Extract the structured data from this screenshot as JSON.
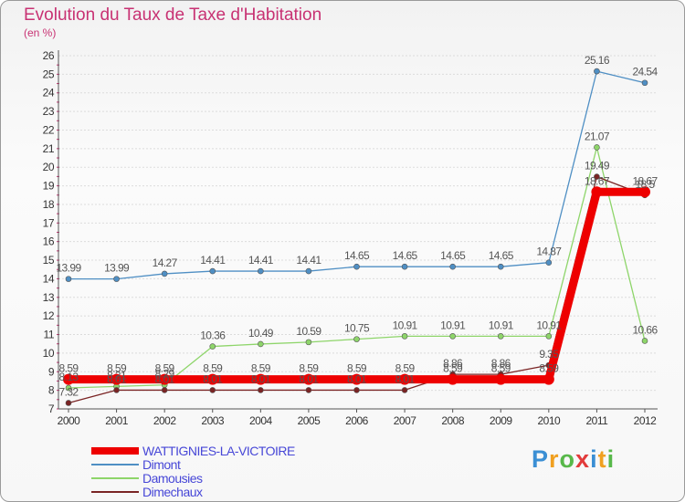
{
  "chart_data": {
    "type": "line",
    "title": "Evolution du Taux de Taxe d'Habitation",
    "subtitle": "(en %)",
    "categories": [
      "2000",
      "2001",
      "2002",
      "2003",
      "2004",
      "2005",
      "2006",
      "2007",
      "2008",
      "2009",
      "2010",
      "2011",
      "2012"
    ],
    "ylim": [
      7,
      26
    ],
    "yticks": [
      7,
      8,
      9,
      10,
      11,
      12,
      13,
      14,
      15,
      16,
      17,
      18,
      19,
      20,
      21,
      22,
      23,
      24,
      25,
      26
    ],
    "grid": "horizontal",
    "legend_position": "bottom-left",
    "series": [
      {
        "name": "WATTIGNIES-LA-VICTOIRE",
        "color": "#ee0000",
        "values": [
          8.59,
          8.59,
          8.59,
          8.59,
          8.59,
          8.59,
          8.59,
          8.59,
          8.59,
          8.59,
          8.59,
          18.67,
          18.67
        ],
        "labels": [
          "8.59",
          "8.59",
          "8.59",
          "8.59",
          "8.59",
          "8.59",
          "8.59",
          "8.59",
          "8.59",
          "8.59",
          "8.59",
          "18.67",
          "18.67"
        ]
      },
      {
        "name": "Dimont",
        "color": "#4f8fc4",
        "values": [
          13.99,
          13.99,
          14.27,
          14.41,
          14.41,
          14.41,
          14.65,
          14.65,
          14.65,
          14.65,
          14.87,
          25.16,
          24.54
        ],
        "labels": [
          "13.99",
          "13.99",
          "14.27",
          "14.41",
          "14.41",
          "14.41",
          "14.65",
          "14.65",
          "14.65",
          "14.65",
          "14.87",
          "25.16",
          "24.54"
        ]
      },
      {
        "name": "Damousies",
        "color": "#8ed56a",
        "values": [
          8.13,
          8.21,
          8.29,
          10.36,
          10.49,
          10.59,
          10.75,
          10.91,
          10.91,
          10.91,
          10.91,
          21.07,
          10.66
        ],
        "labels": [
          "8.13",
          "8.21",
          "8.29",
          "10.36",
          "10.49",
          "10.59",
          "10.75",
          "10.91",
          "10.91",
          "10.91",
          "10.91",
          "21.07",
          "10.66"
        ]
      },
      {
        "name": "Dimechaux",
        "color": "#7a2424",
        "values": [
          7.32,
          8.01,
          8.01,
          8.01,
          8.01,
          8.01,
          8.01,
          8.01,
          8.86,
          8.86,
          9.35,
          19.49,
          18.5
        ],
        "labels": [
          "7.32",
          "8.01",
          "8.01",
          "8.01",
          "8.01",
          "8.01",
          "8.01",
          "8.01",
          "8.86",
          "8.86",
          "9.35",
          "19.49",
          "18.5"
        ]
      }
    ]
  },
  "logo": {
    "letters": [
      "P",
      "r",
      "o",
      "x",
      "i",
      "t",
      "i"
    ],
    "colors": [
      "#3b8fd4",
      "#f0a020",
      "#58b84a",
      "#e23b3b",
      "#3b8fd4",
      "#f0a020",
      "#58b84a"
    ]
  }
}
